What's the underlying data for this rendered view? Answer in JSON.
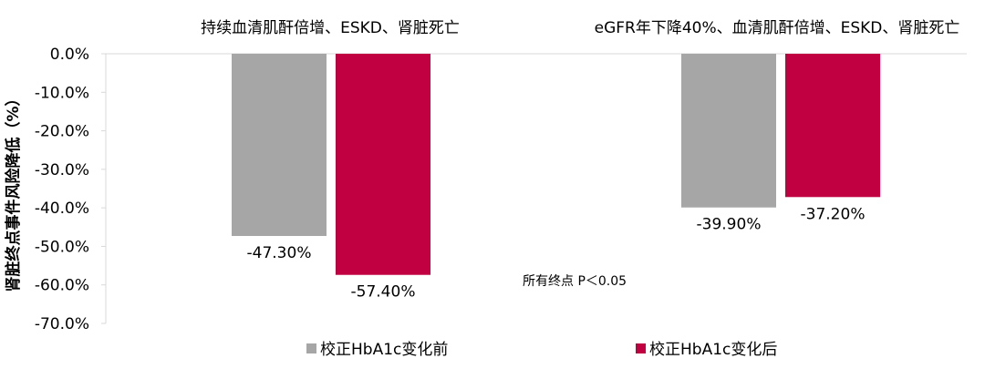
{
  "chart_data": {
    "type": "bar",
    "categories": [
      "持续血清肌酐倍增、ESKD、肾脏死亡",
      "eGFR年下降40%、血清肌酐倍增、ESKD、肾脏死亡"
    ],
    "series": [
      {
        "name": "校正HbA1c变化前",
        "values": [
          -47.3,
          -39.9
        ],
        "labels": [
          "-47.30%",
          "-39.90%"
        ],
        "color": "#a6a6a6"
      },
      {
        "name": "校正HbA1c变化后",
        "values": [
          -57.4,
          -37.2
        ],
        "labels": [
          "-57.40%",
          "-37.20%"
        ],
        "color": "#c00040"
      }
    ],
    "ylabel": "肾脏终点事件风险降低（%）",
    "ylim": [
      -70,
      0
    ],
    "yticks": [
      "0.0%",
      "-10.0%",
      "-20.0%",
      "-30.0%",
      "-40.0%",
      "-50.0%",
      "-60.0%",
      "-70.0%"
    ],
    "annotation": "所有终点 P＜0.05",
    "grid": false,
    "legend_position": "bottom"
  }
}
